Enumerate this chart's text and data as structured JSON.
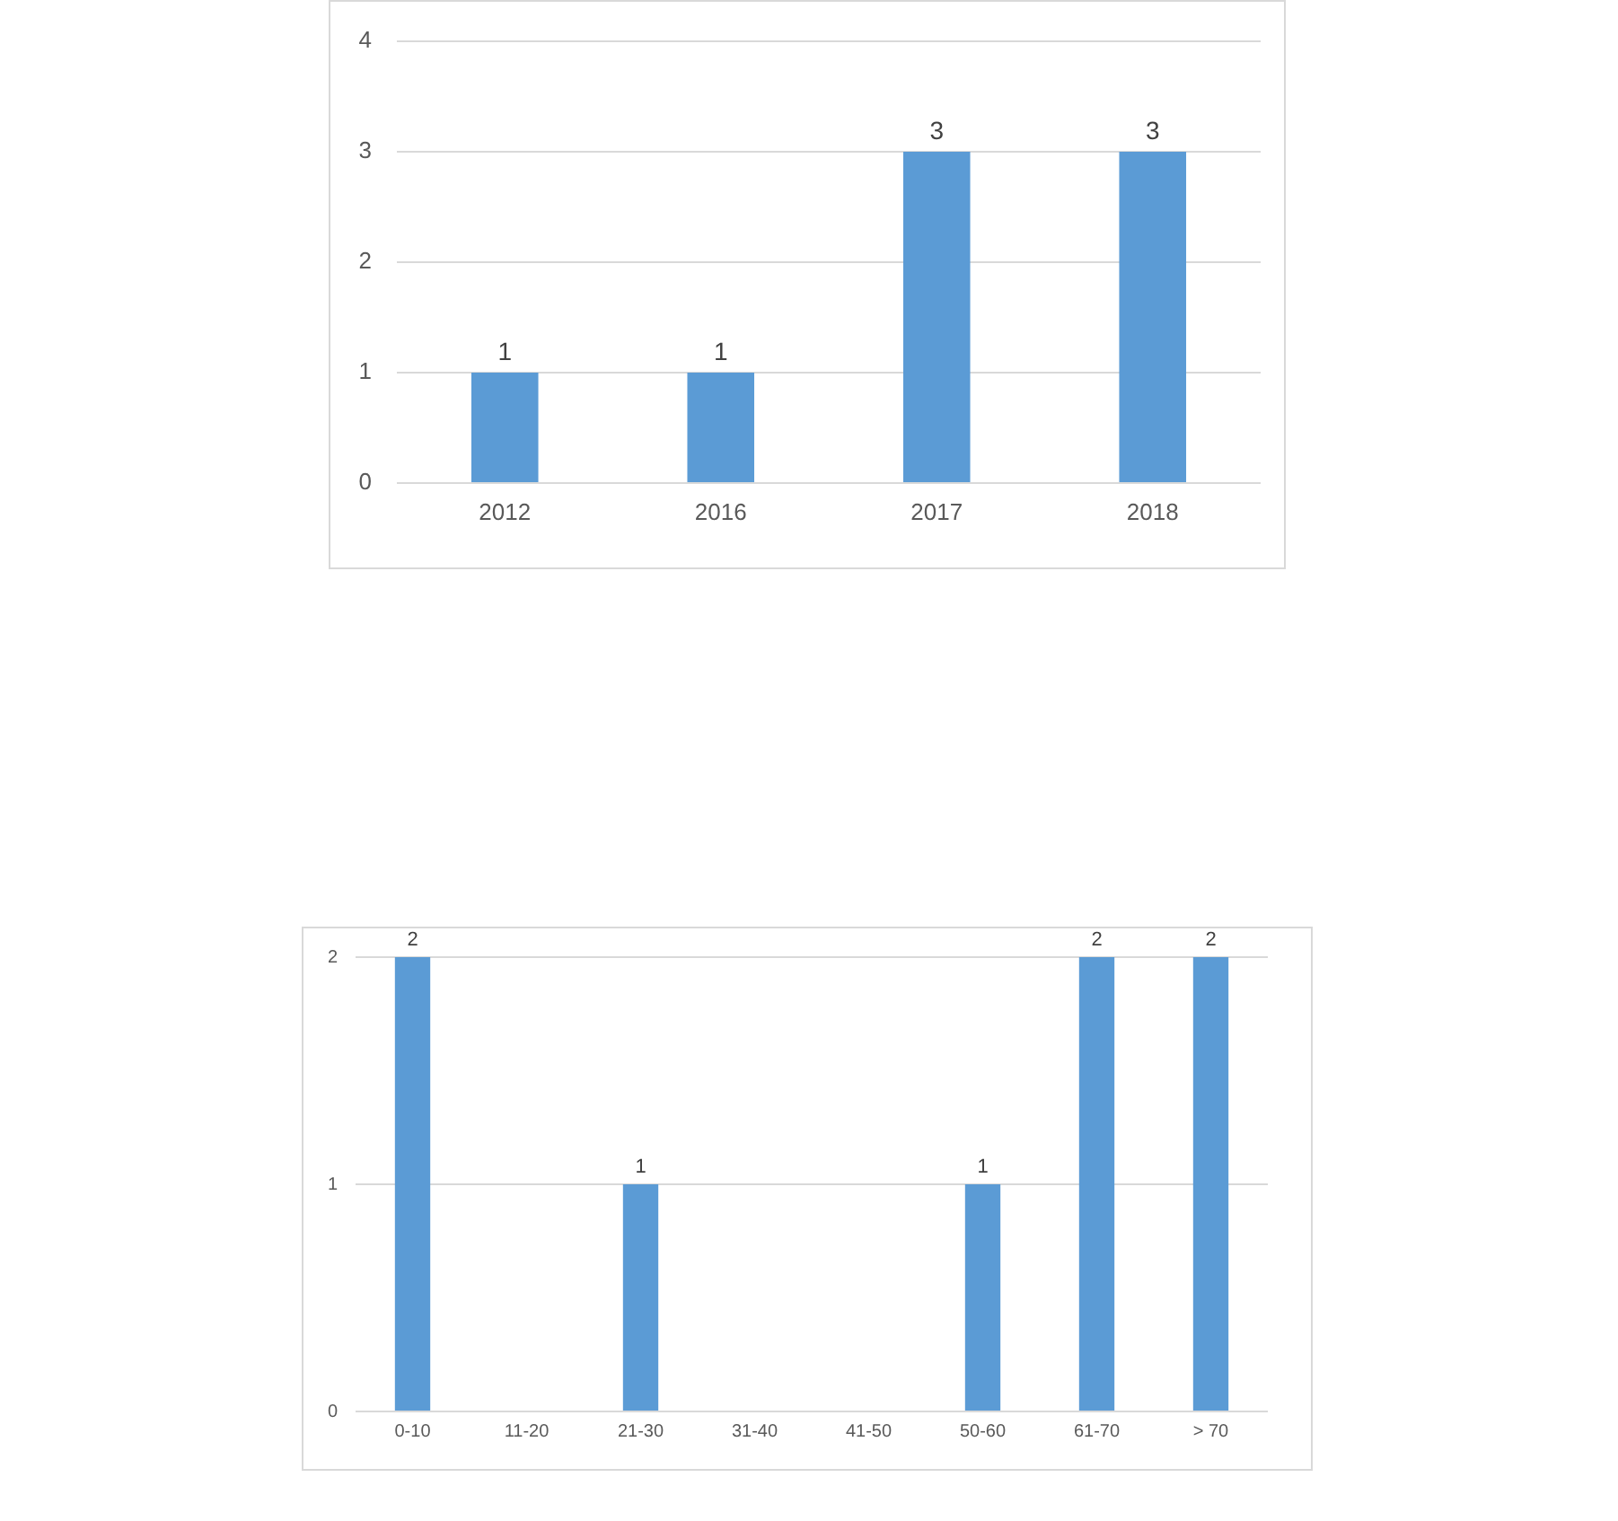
{
  "chart_data": [
    {
      "type": "bar",
      "categories": [
        "2012",
        "2016",
        "2017",
        "2018"
      ],
      "values": [
        1,
        1,
        3,
        3
      ],
      "color": "#5b9bd5",
      "ylim": [
        0,
        4
      ],
      "yticks": [
        0,
        1,
        2,
        3,
        4
      ],
      "grid": "y",
      "data_labels": true
    },
    {
      "type": "bar",
      "categories": [
        "0-10",
        "11-20",
        "21-30",
        "31-40",
        "41-50",
        "50-60",
        "61-70",
        "> 70"
      ],
      "values": [
        2,
        0,
        1,
        0,
        0,
        1,
        2,
        2
      ],
      "value_labels": [
        "2",
        null,
        "1",
        null,
        null,
        "1",
        "2",
        "2"
      ],
      "color": "#5b9bd5",
      "ylim": [
        0,
        2
      ],
      "yticks": [
        0,
        1,
        2
      ],
      "grid": "y"
    }
  ]
}
